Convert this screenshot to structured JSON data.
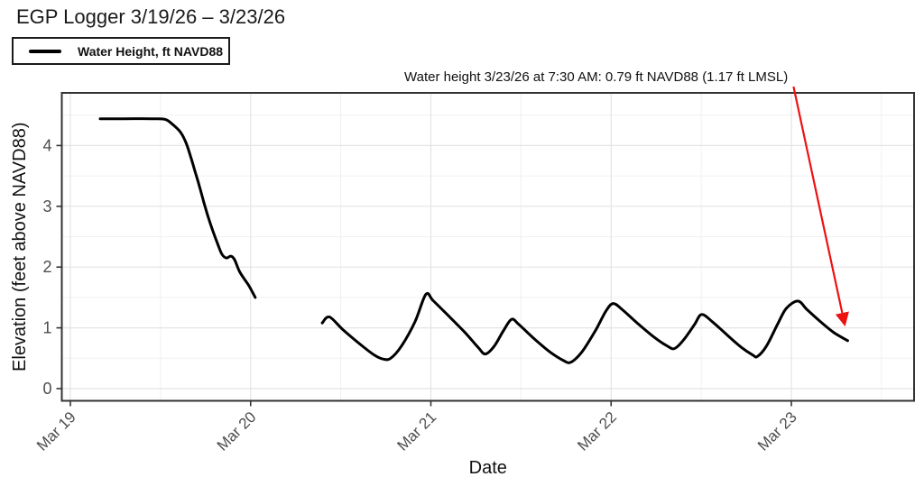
{
  "title": "EGP Logger 3/19/26 – 3/23/26",
  "legend": {
    "label": "Water Height, ft NAVD88"
  },
  "annotation": {
    "text": "Water height 3/23/26 at 7:30 AM: 0.79 ft NAVD88 (1.17 ft LMSL)"
  },
  "colors": {
    "line": "#000000",
    "arrow": "#ee1111",
    "grid_major": "#e4e4e4",
    "grid_minor": "#f0f0f0",
    "border": "#333333",
    "tick_text": "#4d4d4d",
    "axis_title_text": "#111111",
    "background": "#ffffff"
  },
  "chart_data": {
    "type": "line",
    "title": "EGP Logger 3/19/26 – 3/23/26",
    "xlabel": "Date",
    "ylabel": "Elevation (feet above NAVD88)",
    "legend_position": "top-left-outside",
    "grid": true,
    "x_unit": "days since Mar 19 00:00",
    "x_range_days": [
      -0.048,
      4.681
    ],
    "ylim": [
      -0.2,
      4.866
    ],
    "x_ticks": [
      {
        "day": 0,
        "label": "Mar 19"
      },
      {
        "day": 1,
        "label": "Mar 20"
      },
      {
        "day": 2,
        "label": "Mar 21"
      },
      {
        "day": 3,
        "label": "Mar 22"
      },
      {
        "day": 4,
        "label": "Mar 23"
      }
    ],
    "x_minor_days": [
      0.5,
      1.5,
      2.5,
      3.5,
      4.5
    ],
    "y_ticks": [
      {
        "value": 0,
        "label": "0"
      },
      {
        "value": 1,
        "label": "1"
      },
      {
        "value": 2,
        "label": "2"
      },
      {
        "value": 3,
        "label": "3"
      },
      {
        "value": 4,
        "label": "4"
      }
    ],
    "y_minor_values": [
      0.5,
      1.5,
      2.5,
      3.5,
      4.5
    ],
    "series": [
      {
        "name": "Water Height, ft NAVD88",
        "color": "#000000",
        "units": "ft NAVD88",
        "segments": [
          [
            [
              0.165,
              4.44
            ],
            [
              0.3,
              4.44
            ],
            [
              0.45,
              4.44
            ],
            [
              0.526,
              4.43
            ],
            [
              0.566,
              4.35
            ],
            [
              0.611,
              4.22
            ],
            [
              0.641,
              4.05
            ],
            [
              0.666,
              3.83
            ],
            [
              0.691,
              3.58
            ],
            [
              0.716,
              3.33
            ],
            [
              0.741,
              3.06
            ],
            [
              0.766,
              2.81
            ],
            [
              0.791,
              2.59
            ],
            [
              0.816,
              2.39
            ],
            [
              0.841,
              2.21
            ],
            [
              0.866,
              2.15
            ],
            [
              0.891,
              2.18
            ],
            [
              0.911,
              2.12
            ],
            [
              0.936,
              1.94
            ],
            [
              0.961,
              1.82
            ],
            [
              0.991,
              1.69
            ],
            [
              1.026,
              1.5
            ]
          ],
          [
            [
              1.397,
              1.08
            ],
            [
              1.437,
              1.18
            ],
            [
              1.512,
              0.97
            ],
            [
              1.612,
              0.72
            ],
            [
              1.687,
              0.55
            ],
            [
              1.737,
              0.485
            ],
            [
              1.777,
              0.5
            ],
            [
              1.837,
              0.7
            ],
            [
              1.912,
              1.1
            ],
            [
              1.972,
              1.55
            ],
            [
              2.012,
              1.45
            ],
            [
              2.087,
              1.23
            ],
            [
              2.187,
              0.93
            ],
            [
              2.262,
              0.68
            ],
            [
              2.302,
              0.57
            ],
            [
              2.352,
              0.7
            ],
            [
              2.402,
              0.95
            ],
            [
              2.447,
              1.14
            ],
            [
              2.487,
              1.06
            ],
            [
              2.562,
              0.85
            ],
            [
              2.662,
              0.6
            ],
            [
              2.737,
              0.46
            ],
            [
              2.777,
              0.435
            ],
            [
              2.837,
              0.6
            ],
            [
              2.912,
              0.95
            ],
            [
              2.972,
              1.28
            ],
            [
              3.012,
              1.4
            ],
            [
              3.062,
              1.3
            ],
            [
              3.137,
              1.1
            ],
            [
              3.237,
              0.85
            ],
            [
              3.312,
              0.7
            ],
            [
              3.352,
              0.66
            ],
            [
              3.402,
              0.8
            ],
            [
              3.462,
              1.05
            ],
            [
              3.502,
              1.22
            ],
            [
              3.562,
              1.1
            ],
            [
              3.637,
              0.9
            ],
            [
              3.722,
              0.68
            ],
            [
              3.787,
              0.55
            ],
            [
              3.812,
              0.53
            ],
            [
              3.862,
              0.7
            ],
            [
              3.922,
              1.05
            ],
            [
              3.972,
              1.32
            ],
            [
              4.037,
              1.44
            ],
            [
              4.087,
              1.3
            ],
            [
              4.162,
              1.1
            ],
            [
              4.237,
              0.92
            ],
            [
              4.3125,
              0.79
            ]
          ]
        ]
      }
    ],
    "highlight_point": {
      "day": 4.3125,
      "value": 0.79,
      "time_label": "3/23/26 7:30 AM",
      "lmsl_value": 1.17
    },
    "arrow": {
      "from_day": 4.012,
      "from_value": 4.97,
      "to_day": 4.295,
      "to_value": 1.07
    }
  }
}
